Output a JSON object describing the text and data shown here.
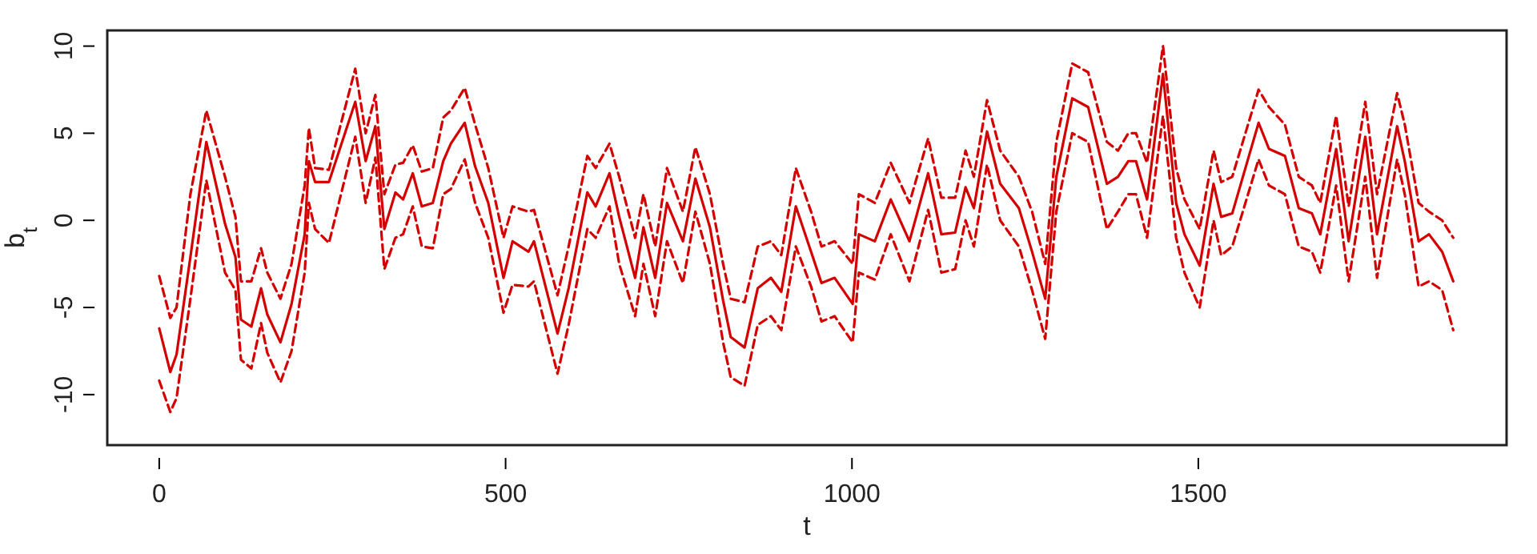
{
  "chart_data": {
    "type": "line",
    "xlabel": "t",
    "ylabel": "b$_{t}$",
    "xlim": [
      -75,
      1945
    ],
    "ylim": [
      -12.9,
      10.9
    ],
    "xticks": [
      0,
      500,
      1000,
      1500
    ],
    "yticks": [
      -10,
      -5,
      0,
      5,
      10
    ],
    "grid": false,
    "marker": "none",
    "x": [
      0,
      16,
      25,
      45,
      68,
      95,
      110,
      118,
      133,
      147,
      156,
      175,
      191,
      210,
      216,
      225,
      245,
      283,
      298,
      312,
      325,
      341,
      352,
      366,
      379,
      395,
      410,
      421,
      441,
      456,
      475,
      497,
      510,
      533,
      541,
      575,
      591,
      618,
      630,
      650,
      664,
      687,
      699,
      716,
      733,
      756,
      774,
      795,
      814,
      825,
      845,
      864,
      883,
      898,
      919,
      941,
      956,
      975,
      1001,
      1010,
      1033,
      1056,
      1083,
      1110,
      1129,
      1149,
      1164,
      1176,
      1195,
      1214,
      1241,
      1260,
      1279,
      1295,
      1318,
      1341,
      1368,
      1384,
      1399,
      1410,
      1426,
      1449,
      1468,
      1480,
      1502,
      1522,
      1533,
      1549,
      1587,
      1602,
      1625,
      1645,
      1664,
      1676,
      1699,
      1717,
      1741,
      1758,
      1787,
      1798,
      1818,
      1833,
      1852,
      1868
    ],
    "series": [
      {
        "color": "#d40000",
        "line_style": "dashed",
        "values": [
          -3.2,
          -5.6,
          -5.0,
          1.5,
          6.3,
          2.5,
          0.2,
          -3.5,
          -3.5,
          -1.6,
          -3.0,
          -4.5,
          -2.5,
          2.0,
          5.3,
          3.0,
          2.9,
          8.7,
          5.0,
          7.2,
          1.5,
          3.2,
          3.3,
          4.3,
          2.8,
          3.0,
          5.9,
          6.3,
          7.6,
          5.5,
          3.0,
          -1.0,
          0.8,
          0.5,
          0.6,
          -4.3,
          -1.5,
          3.7,
          3.0,
          4.4,
          2.5,
          -1.0,
          1.5,
          -1.5,
          3.0,
          0.5,
          4.2,
          1.5,
          -2.5,
          -4.5,
          -4.7,
          -1.5,
          -1.2,
          -2.0,
          3.0,
          0.5,
          -1.5,
          -1.2,
          -2.5,
          1.5,
          1.0,
          3.3,
          1.0,
          4.7,
          1.3,
          1.3,
          4.0,
          2.5,
          6.9,
          4.0,
          2.5,
          0.5,
          -2.5,
          4.5,
          9.0,
          8.5,
          4.5,
          4.0,
          5.0,
          5.0,
          3.3,
          10.0,
          3.0,
          1.2,
          -0.5,
          4.0,
          2.2,
          2.5,
          7.5,
          6.5,
          5.5,
          2.5,
          2.0,
          1.0,
          6.0,
          0.8,
          6.8,
          1.5,
          7.3,
          5.5,
          1.0,
          0.5,
          0.0,
          -1.0
        ]
      },
      {
        "color": "#d40000",
        "line_style": "dashed",
        "values": [
          -9.2,
          -11.0,
          -10.2,
          -4.5,
          2.3,
          -3.0,
          -4.0,
          -8.0,
          -8.5,
          -5.9,
          -7.6,
          -9.3,
          -7.5,
          -3.0,
          1.0,
          -0.5,
          -1.3,
          4.8,
          1.0,
          3.6,
          -2.8,
          -1.0,
          -0.8,
          0.8,
          -1.5,
          -1.6,
          1.5,
          1.8,
          3.5,
          1.0,
          -1.0,
          -5.3,
          -3.7,
          -3.8,
          -3.5,
          -8.8,
          -6.0,
          -0.5,
          -1.0,
          0.8,
          -2.5,
          -5.5,
          -2.5,
          -5.5,
          -1.2,
          -3.6,
          0.5,
          -2.5,
          -7.0,
          -9.0,
          -9.5,
          -6.0,
          -5.5,
          -6.3,
          -1.5,
          -3.8,
          -5.8,
          -5.5,
          -7.0,
          -3.0,
          -3.4,
          -0.8,
          -3.5,
          0.6,
          -3.0,
          -2.8,
          0.0,
          -1.5,
          3.2,
          0.0,
          -1.5,
          -4.0,
          -6.8,
          0.5,
          5.0,
          4.5,
          -0.5,
          0.5,
          1.5,
          1.5,
          -1.0,
          6.0,
          -1.0,
          -3.0,
          -5.0,
          0.0,
          -2.0,
          -1.5,
          3.5,
          2.0,
          1.5,
          -1.5,
          -1.8,
          -3.0,
          2.0,
          -3.5,
          2.5,
          -3.3,
          3.5,
          1.5,
          -3.8,
          -3.5,
          -4.0,
          -6.3
        ]
      },
      {
        "color": "#d40000",
        "line_style": "solid",
        "values": [
          -6.2,
          -8.7,
          -7.7,
          -2.1,
          4.5,
          -0.2,
          -2.1,
          -5.7,
          -6.1,
          -3.9,
          -5.4,
          -7.0,
          -4.8,
          -0.8,
          3.4,
          2.2,
          2.2,
          6.8,
          3.4,
          5.4,
          -0.5,
          1.6,
          1.2,
          2.7,
          0.8,
          1.0,
          3.4,
          4.4,
          5.6,
          3.1,
          1.0,
          -3.3,
          -1.2,
          -1.8,
          -1.2,
          -6.5,
          -3.9,
          1.6,
          0.8,
          2.7,
          0.2,
          -3.3,
          -0.4,
          -3.3,
          1.0,
          -1.2,
          2.4,
          -0.4,
          -4.6,
          -6.7,
          -7.3,
          -3.9,
          -3.3,
          -4.1,
          0.8,
          -1.8,
          -3.6,
          -3.3,
          -4.8,
          -0.8,
          -1.2,
          1.2,
          -1.2,
          2.7,
          -0.8,
          -0.7,
          1.9,
          0.7,
          5.1,
          2.1,
          0.7,
          -1.8,
          -4.5,
          2.5,
          7.0,
          6.5,
          2.1,
          2.5,
          3.4,
          3.4,
          1.2,
          8.4,
          1.0,
          -0.8,
          -2.6,
          2.1,
          0.2,
          0.4,
          5.6,
          4.1,
          3.7,
          0.7,
          0.4,
          -0.8,
          4.1,
          -1.2,
          4.8,
          -0.8,
          5.4,
          3.4,
          -1.2,
          -0.8,
          -1.8,
          -3.5
        ]
      }
    ]
  }
}
